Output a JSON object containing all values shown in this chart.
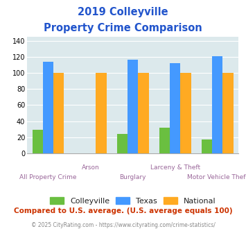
{
  "title_line1": "2019 Colleyville",
  "title_line2": "Property Crime Comparison",
  "categories": [
    "All Property Crime",
    "Arson",
    "Burglary",
    "Larceny & Theft",
    "Motor Vehicle Theft"
  ],
  "colleyville": [
    29,
    0,
    24,
    32,
    17
  ],
  "texas": [
    114,
    0,
    116,
    112,
    121
  ],
  "national": [
    100,
    100,
    100,
    100,
    100
  ],
  "colleyville_color": "#6abf40",
  "texas_color": "#4499ff",
  "national_color": "#ffaa22",
  "bar_width": 0.25,
  "ylim": [
    0,
    145
  ],
  "yticks": [
    0,
    20,
    40,
    60,
    80,
    100,
    120,
    140
  ],
  "plot_bg": "#dce9ec",
  "title_color": "#2255cc",
  "footer_text": "Compared to U.S. average. (U.S. average equals 100)",
  "footer_color": "#cc3300",
  "credit_text": "© 2025 CityRating.com - https://www.cityrating.com/crime-statistics/",
  "credit_color": "#888888",
  "legend_labels": [
    "Colleyville",
    "Texas",
    "National"
  ],
  "label_color": "#996699",
  "grid_color": "#ffffff"
}
